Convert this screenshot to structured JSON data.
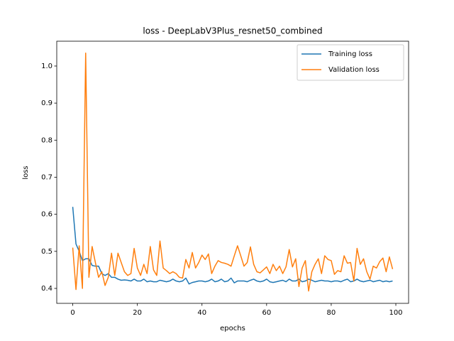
{
  "chart_data": {
    "type": "line",
    "title": "loss - DeepLabV3Plus_resnet50_combined",
    "x_label": "epochs",
    "y_label": "loss",
    "x": [
      0,
      1,
      2,
      3,
      4,
      5,
      6,
      7,
      8,
      9,
      10,
      11,
      12,
      13,
      14,
      15,
      16,
      17,
      18,
      19,
      20,
      21,
      22,
      23,
      24,
      25,
      26,
      27,
      28,
      29,
      30,
      31,
      32,
      33,
      34,
      35,
      36,
      37,
      38,
      39,
      40,
      41,
      42,
      43,
      44,
      45,
      46,
      47,
      48,
      49,
      50,
      51,
      52,
      53,
      54,
      55,
      56,
      57,
      58,
      59,
      60,
      61,
      62,
      63,
      64,
      65,
      66,
      67,
      68,
      69,
      70,
      71,
      72,
      73,
      74,
      75,
      76,
      77,
      78,
      79,
      80,
      81,
      82,
      83,
      84,
      85,
      86,
      87,
      88,
      89,
      90,
      91,
      92,
      93,
      94,
      95,
      96,
      97,
      98,
      99
    ],
    "series": [
      {
        "name": "Training loss",
        "color": "#1f77b4",
        "values": [
          0.62,
          0.52,
          0.5,
          0.475,
          0.48,
          0.48,
          0.462,
          0.46,
          0.46,
          0.44,
          0.435,
          0.44,
          0.43,
          0.43,
          0.425,
          0.422,
          0.423,
          0.422,
          0.42,
          0.425,
          0.42,
          0.42,
          0.425,
          0.418,
          0.42,
          0.418,
          0.418,
          0.422,
          0.42,
          0.418,
          0.42,
          0.425,
          0.42,
          0.418,
          0.42,
          0.428,
          0.412,
          0.416,
          0.418,
          0.42,
          0.42,
          0.418,
          0.42,
          0.425,
          0.418,
          0.42,
          0.425,
          0.418,
          0.42,
          0.428,
          0.415,
          0.42,
          0.42,
          0.42,
          0.418,
          0.422,
          0.425,
          0.42,
          0.418,
          0.42,
          0.425,
          0.418,
          0.416,
          0.418,
          0.42,
          0.422,
          0.418,
          0.425,
          0.42,
          0.42,
          0.425,
          0.418,
          0.42,
          0.425,
          0.422,
          0.418,
          0.42,
          0.422,
          0.42,
          0.42,
          0.418,
          0.42,
          0.42,
          0.418,
          0.422,
          0.425,
          0.418,
          0.42,
          0.425,
          0.42,
          0.418,
          0.42,
          0.422,
          0.418,
          0.42,
          0.422,
          0.418,
          0.42,
          0.418,
          0.42
        ]
      },
      {
        "name": "Validation loss",
        "color": "#ff7f0e",
        "values": [
          0.51,
          0.397,
          0.515,
          0.4,
          1.035,
          0.43,
          0.513,
          0.47,
          0.43,
          0.445,
          0.408,
          0.43,
          0.495,
          0.435,
          0.495,
          0.47,
          0.445,
          0.435,
          0.44,
          0.508,
          0.455,
          0.435,
          0.465,
          0.44,
          0.513,
          0.45,
          0.435,
          0.528,
          0.455,
          0.448,
          0.44,
          0.445,
          0.44,
          0.43,
          0.428,
          0.478,
          0.455,
          0.497,
          0.455,
          0.47,
          0.49,
          0.478,
          0.493,
          0.44,
          0.46,
          0.475,
          0.47,
          0.468,
          0.465,
          0.46,
          0.488,
          0.515,
          0.488,
          0.46,
          0.47,
          0.512,
          0.465,
          0.445,
          0.442,
          0.45,
          0.458,
          0.44,
          0.465,
          0.448,
          0.46,
          0.44,
          0.458,
          0.505,
          0.458,
          0.48,
          0.405,
          0.455,
          0.475,
          0.393,
          0.445,
          0.465,
          0.48,
          0.44,
          0.488,
          0.478,
          0.475,
          0.438,
          0.448,
          0.445,
          0.488,
          0.468,
          0.47,
          0.42,
          0.508,
          0.465,
          0.48,
          0.445,
          0.425,
          0.46,
          0.455,
          0.472,
          0.482,
          0.445,
          0.485,
          0.452
        ]
      }
    ],
    "xlim": [
      -4.95,
      103.95
    ],
    "ylim": [
      0.3597,
      1.067
    ],
    "xticks": [
      0,
      20,
      40,
      60,
      80,
      100
    ],
    "yticks": [
      0.4,
      0.5,
      0.6,
      0.7,
      0.8,
      0.9,
      {
        "value": 1,
        "label": "1.0"
      }
    ],
    "legend": "upper right"
  }
}
